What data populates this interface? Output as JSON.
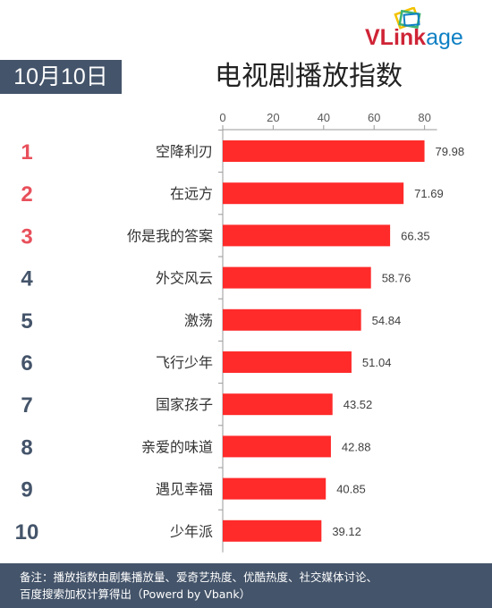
{
  "brand": {
    "logo_part1": "VLink",
    "logo_part2": "age",
    "color_primary": "#cf2436",
    "color_secondary": "#0f80c4"
  },
  "date_label": "10月10日",
  "chart_title": "电视剧播放指数",
  "chart_data": {
    "type": "bar",
    "orientation": "horizontal",
    "title": "电视剧播放指数",
    "ranks": [
      "1",
      "2",
      "3",
      "4",
      "5",
      "6",
      "7",
      "8",
      "9",
      "10"
    ],
    "categories": [
      "空降利刃",
      "在远方",
      "你是我的答案",
      "外交风云",
      "激荡",
      "飞行少年",
      "国家孩子",
      "亲爱的味道",
      "遇见幸福",
      "少年派"
    ],
    "values": [
      79.98,
      71.69,
      66.35,
      58.76,
      54.84,
      51.04,
      43.52,
      42.88,
      40.85,
      39.12
    ],
    "value_labels": [
      "79.98",
      "71.69",
      "66.35",
      "58.76",
      "54.84",
      "51.04",
      "43.52",
      "42.88",
      "40.85",
      "39.12"
    ],
    "x_ticks": [
      0,
      20,
      40,
      60,
      80
    ],
    "xlim": [
      0,
      80
    ],
    "axis_position": "top",
    "grid": false,
    "bar_color": "#ff2a2a",
    "rank_colors": {
      "top3": "#e8505b",
      "rest": "#44546a"
    }
  },
  "footer": {
    "line1": "备注：播放指数由剧集播放量、爱奇艺热度、优酷热度、社交媒体讨论、",
    "line2": "百度搜索加权计算得出（Powerd by Vbank）"
  }
}
